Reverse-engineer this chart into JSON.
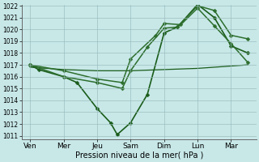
{
  "background_color": "#c8e8e8",
  "grid_color": "#99bbbb",
  "xlabel": "Pression niveau de la mer( hPa )",
  "ylim": [
    1011,
    1022
  ],
  "yticks": [
    1011,
    1012,
    1013,
    1014,
    1015,
    1016,
    1017,
    1018,
    1019,
    1020,
    1021,
    1022
  ],
  "x_labels": [
    "Ven",
    "Mer",
    "Jeu",
    "Sam",
    "Dim",
    "Lun",
    "Mar"
  ],
  "x_positions": [
    0,
    2,
    4,
    6,
    8,
    10,
    12
  ],
  "series": [
    {
      "x": [
        0,
        0.5,
        2.0,
        2.8,
        4.0,
        4.8,
        5.2,
        6.0,
        7.0,
        8.0,
        8.8,
        10.0,
        11.0,
        12.0,
        13.0
      ],
      "y": [
        1017.0,
        1016.6,
        1016.0,
        1015.5,
        1013.3,
        1012.1,
        1011.1,
        1012.1,
        1014.5,
        1019.7,
        1020.2,
        1022.1,
        1021.0,
        1018.6,
        1018.0
      ],
      "color": "#1a5c1a",
      "lw": 1.2,
      "marker": "D",
      "ms": 2.5
    },
    {
      "x": [
        0,
        2,
        4,
        6,
        8,
        10,
        12,
        13
      ],
      "y": [
        1016.8,
        1016.6,
        1016.5,
        1016.5,
        1016.6,
        1016.7,
        1016.9,
        1017.0
      ],
      "color": "#1a5c1a",
      "lw": 0.9,
      "marker": null,
      "ms": 0
    },
    {
      "x": [
        0,
        2.0,
        4.0,
        5.5,
        6.0,
        7.0,
        8.0,
        8.8,
        10.0,
        11.0,
        12.0,
        13.0
      ],
      "y": [
        1017.0,
        1016.0,
        1015.5,
        1015.0,
        1016.5,
        1018.5,
        1020.1,
        1020.2,
        1022.0,
        1021.6,
        1019.5,
        1019.2
      ],
      "color": "#2d6e2d",
      "lw": 1.1,
      "marker": "D",
      "ms": 2.5
    },
    {
      "x": [
        0,
        2.0,
        4.0,
        5.5,
        6.0,
        7.5,
        8.0,
        9.0,
        10.0,
        11.0,
        12.0,
        13.0
      ],
      "y": [
        1017.0,
        1016.5,
        1015.8,
        1015.5,
        1017.5,
        1019.5,
        1020.5,
        1020.4,
        1021.8,
        1020.3,
        1018.8,
        1017.2
      ],
      "color": "#2d6e2d",
      "lw": 1.1,
      "marker": "D",
      "ms": 2.5
    }
  ]
}
